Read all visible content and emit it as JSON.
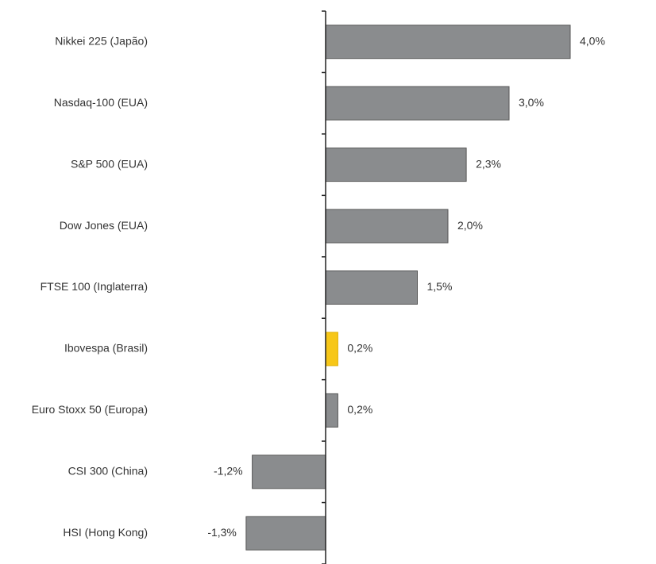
{
  "chart_data": {
    "type": "bar",
    "orientation": "horizontal",
    "categories": [
      "Nikkei 225 (Japão)",
      "Nasdaq-100 (EUA)",
      "S&P 500 (EUA)",
      "Dow Jones (EUA)",
      "FTSE 100 (Inglaterra)",
      "Ibovespa (Brasil)",
      "Euro Stoxx 50 (Europa)",
      "CSI 300 (China)",
      "HSI (Hong Kong)"
    ],
    "values": [
      4.0,
      3.0,
      2.3,
      2.0,
      1.5,
      0.2,
      0.2,
      -1.2,
      -1.3
    ],
    "value_labels": [
      "4,0%",
      "3,0%",
      "2,3%",
      "2,0%",
      "1,5%",
      "0,2%",
      "0,2%",
      "-1,2%",
      "-1,3%"
    ],
    "colors": [
      "#8a8c8e",
      "#8a8c8e",
      "#8a8c8e",
      "#8a8c8e",
      "#8a8c8e",
      "#f7c718",
      "#8a8c8e",
      "#8a8c8e",
      "#8a8c8e"
    ],
    "xlim": [
      -1.5,
      5.0
    ]
  }
}
